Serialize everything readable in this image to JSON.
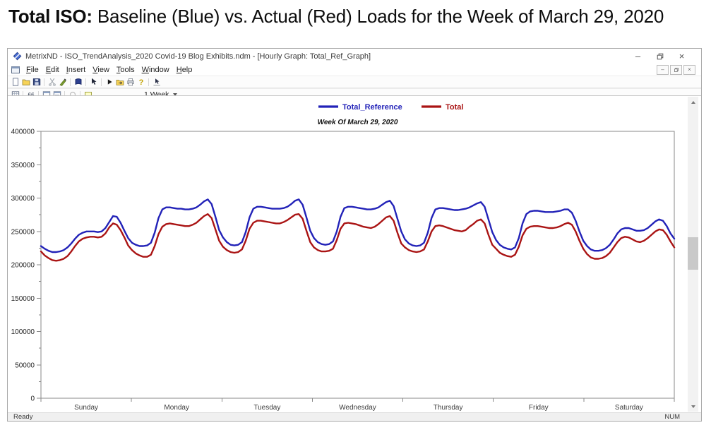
{
  "heading": {
    "bold": "Total ISO:",
    "rest": " Baseline (Blue) vs. Actual (Red) Loads for the Week of March 29, 2020"
  },
  "window": {
    "title": "MetrixND - ISO_TrendAnalysis_2020 Covid-19 Blog Exhibits.ndm - [Hourly Graph: Total_Ref_Graph]",
    "app_icon": "metrixnd-logo",
    "controls": [
      "minimize",
      "restore",
      "close"
    ],
    "child_controls": [
      "minimize",
      "restore",
      "close"
    ],
    "menus": [
      "File",
      "Edit",
      "Insert",
      "View",
      "Tools",
      "Window",
      "Help"
    ],
    "toolbar1": {
      "groups": [
        [
          "new-document",
          "open-file",
          "save"
        ],
        [
          "cut",
          "format-brush"
        ],
        [
          "workbook"
        ],
        [
          "select-pointer"
        ],
        [
          "run",
          "export-folder",
          "print",
          "help"
        ],
        [
          "navigate-pointer"
        ]
      ]
    },
    "toolbar2": {
      "groups": [
        [
          "data-grid"
        ],
        [
          "quotes"
        ],
        [
          "view-window",
          "properties-window"
        ],
        [
          "disabled-circle"
        ],
        [
          "comment-bubble"
        ]
      ],
      "period_label": "1 Week"
    },
    "status": {
      "left": "Ready",
      "right": "NUM"
    }
  },
  "chart_data": {
    "type": "line",
    "title": "Week Of March 29, 2020",
    "x_unit": "hour of week (hourly points, 24 per day)",
    "day_labels": [
      "Sunday",
      "Monday",
      "Tuesday",
      "Wednesday",
      "Thursday",
      "Friday",
      "Saturday"
    ],
    "ylim": [
      0,
      400000
    ],
    "y_major_ticks": [
      0,
      50000,
      100000,
      150000,
      200000,
      250000,
      300000,
      350000,
      400000
    ],
    "y_minor_step": 25000,
    "grid": false,
    "legend_position": "top-center",
    "series": [
      {
        "name": "Total_Reference",
        "color": "#2222b8",
        "values": [
          228000,
          224000,
          221000,
          219000,
          219000,
          220000,
          222000,
          226000,
          232000,
          239000,
          245000,
          248000,
          250000,
          250000,
          250000,
          249000,
          250000,
          255000,
          264000,
          273000,
          272000,
          263000,
          251000,
          240000,
          233000,
          230000,
          228000,
          228000,
          229000,
          233000,
          248000,
          270000,
          283000,
          286000,
          286000,
          285000,
          284000,
          284000,
          283000,
          283000,
          284000,
          286000,
          290000,
          295000,
          298000,
          291000,
          272000,
          252000,
          241000,
          234000,
          230000,
          229000,
          230000,
          234000,
          249000,
          271000,
          284000,
          287000,
          287000,
          286000,
          285000,
          284000,
          284000,
          284000,
          285000,
          287000,
          291000,
          296000,
          298000,
          290000,
          271000,
          251000,
          240000,
          234000,
          231000,
          230000,
          231000,
          235000,
          250000,
          272000,
          285000,
          287000,
          287000,
          286000,
          285000,
          284000,
          283000,
          283000,
          284000,
          286000,
          290000,
          294000,
          296000,
          288000,
          269000,
          250000,
          238000,
          232000,
          229000,
          228000,
          229000,
          233000,
          248000,
          270000,
          283000,
          285000,
          285000,
          284000,
          283000,
          282000,
          282000,
          283000,
          284000,
          286000,
          289000,
          292000,
          294000,
          287000,
          268000,
          249000,
          237000,
          230000,
          226000,
          224000,
          223000,
          226000,
          240000,
          262000,
          276000,
          280000,
          281000,
          281000,
          280000,
          279000,
          279000,
          279000,
          280000,
          281000,
          283000,
          283000,
          278000,
          266000,
          250000,
          236000,
          228000,
          223000,
          221000,
          221000,
          222000,
          225000,
          230000,
          238000,
          247000,
          253000,
          255000,
          255000,
          253000,
          251000,
          251000,
          252000,
          255000,
          260000,
          265000,
          268000,
          266000,
          258000,
          247000,
          239000
        ]
      },
      {
        "name": "Total",
        "color": "#aa1414",
        "values": [
          220000,
          214000,
          210000,
          207000,
          206000,
          207000,
          209000,
          213000,
          220000,
          228000,
          235000,
          239000,
          241000,
          242000,
          242000,
          241000,
          242000,
          247000,
          256000,
          262000,
          260000,
          252000,
          241000,
          229000,
          222000,
          217000,
          214000,
          212000,
          212000,
          215000,
          228000,
          246000,
          257000,
          261000,
          262000,
          261000,
          260000,
          259000,
          258000,
          258000,
          260000,
          263000,
          268000,
          273000,
          276000,
          270000,
          253000,
          236000,
          227000,
          222000,
          219000,
          218000,
          219000,
          223000,
          236000,
          254000,
          263000,
          266000,
          266000,
          265000,
          264000,
          263000,
          262000,
          262000,
          264000,
          267000,
          271000,
          275000,
          276000,
          269000,
          251000,
          234000,
          226000,
          222000,
          220000,
          220000,
          221000,
          224000,
          237000,
          254000,
          262000,
          263000,
          262000,
          261000,
          259000,
          257000,
          256000,
          255000,
          257000,
          261000,
          266000,
          271000,
          273000,
          266000,
          248000,
          232000,
          226000,
          222000,
          220000,
          219000,
          220000,
          223000,
          235000,
          250000,
          258000,
          259000,
          258000,
          256000,
          254000,
          252000,
          251000,
          250000,
          252000,
          257000,
          261000,
          266000,
          268000,
          262000,
          245000,
          230000,
          224000,
          218000,
          215000,
          213000,
          212000,
          215000,
          227000,
          244000,
          254000,
          257000,
          258000,
          258000,
          257000,
          256000,
          255000,
          255000,
          256000,
          258000,
          261000,
          263000,
          260000,
          250000,
          236000,
          224000,
          216000,
          211000,
          209000,
          209000,
          210000,
          213000,
          218000,
          226000,
          234000,
          240000,
          242000,
          241000,
          238000,
          235000,
          234000,
          236000,
          240000,
          245000,
          250000,
          253000,
          252000,
          245000,
          235000,
          226000
        ]
      }
    ]
  }
}
